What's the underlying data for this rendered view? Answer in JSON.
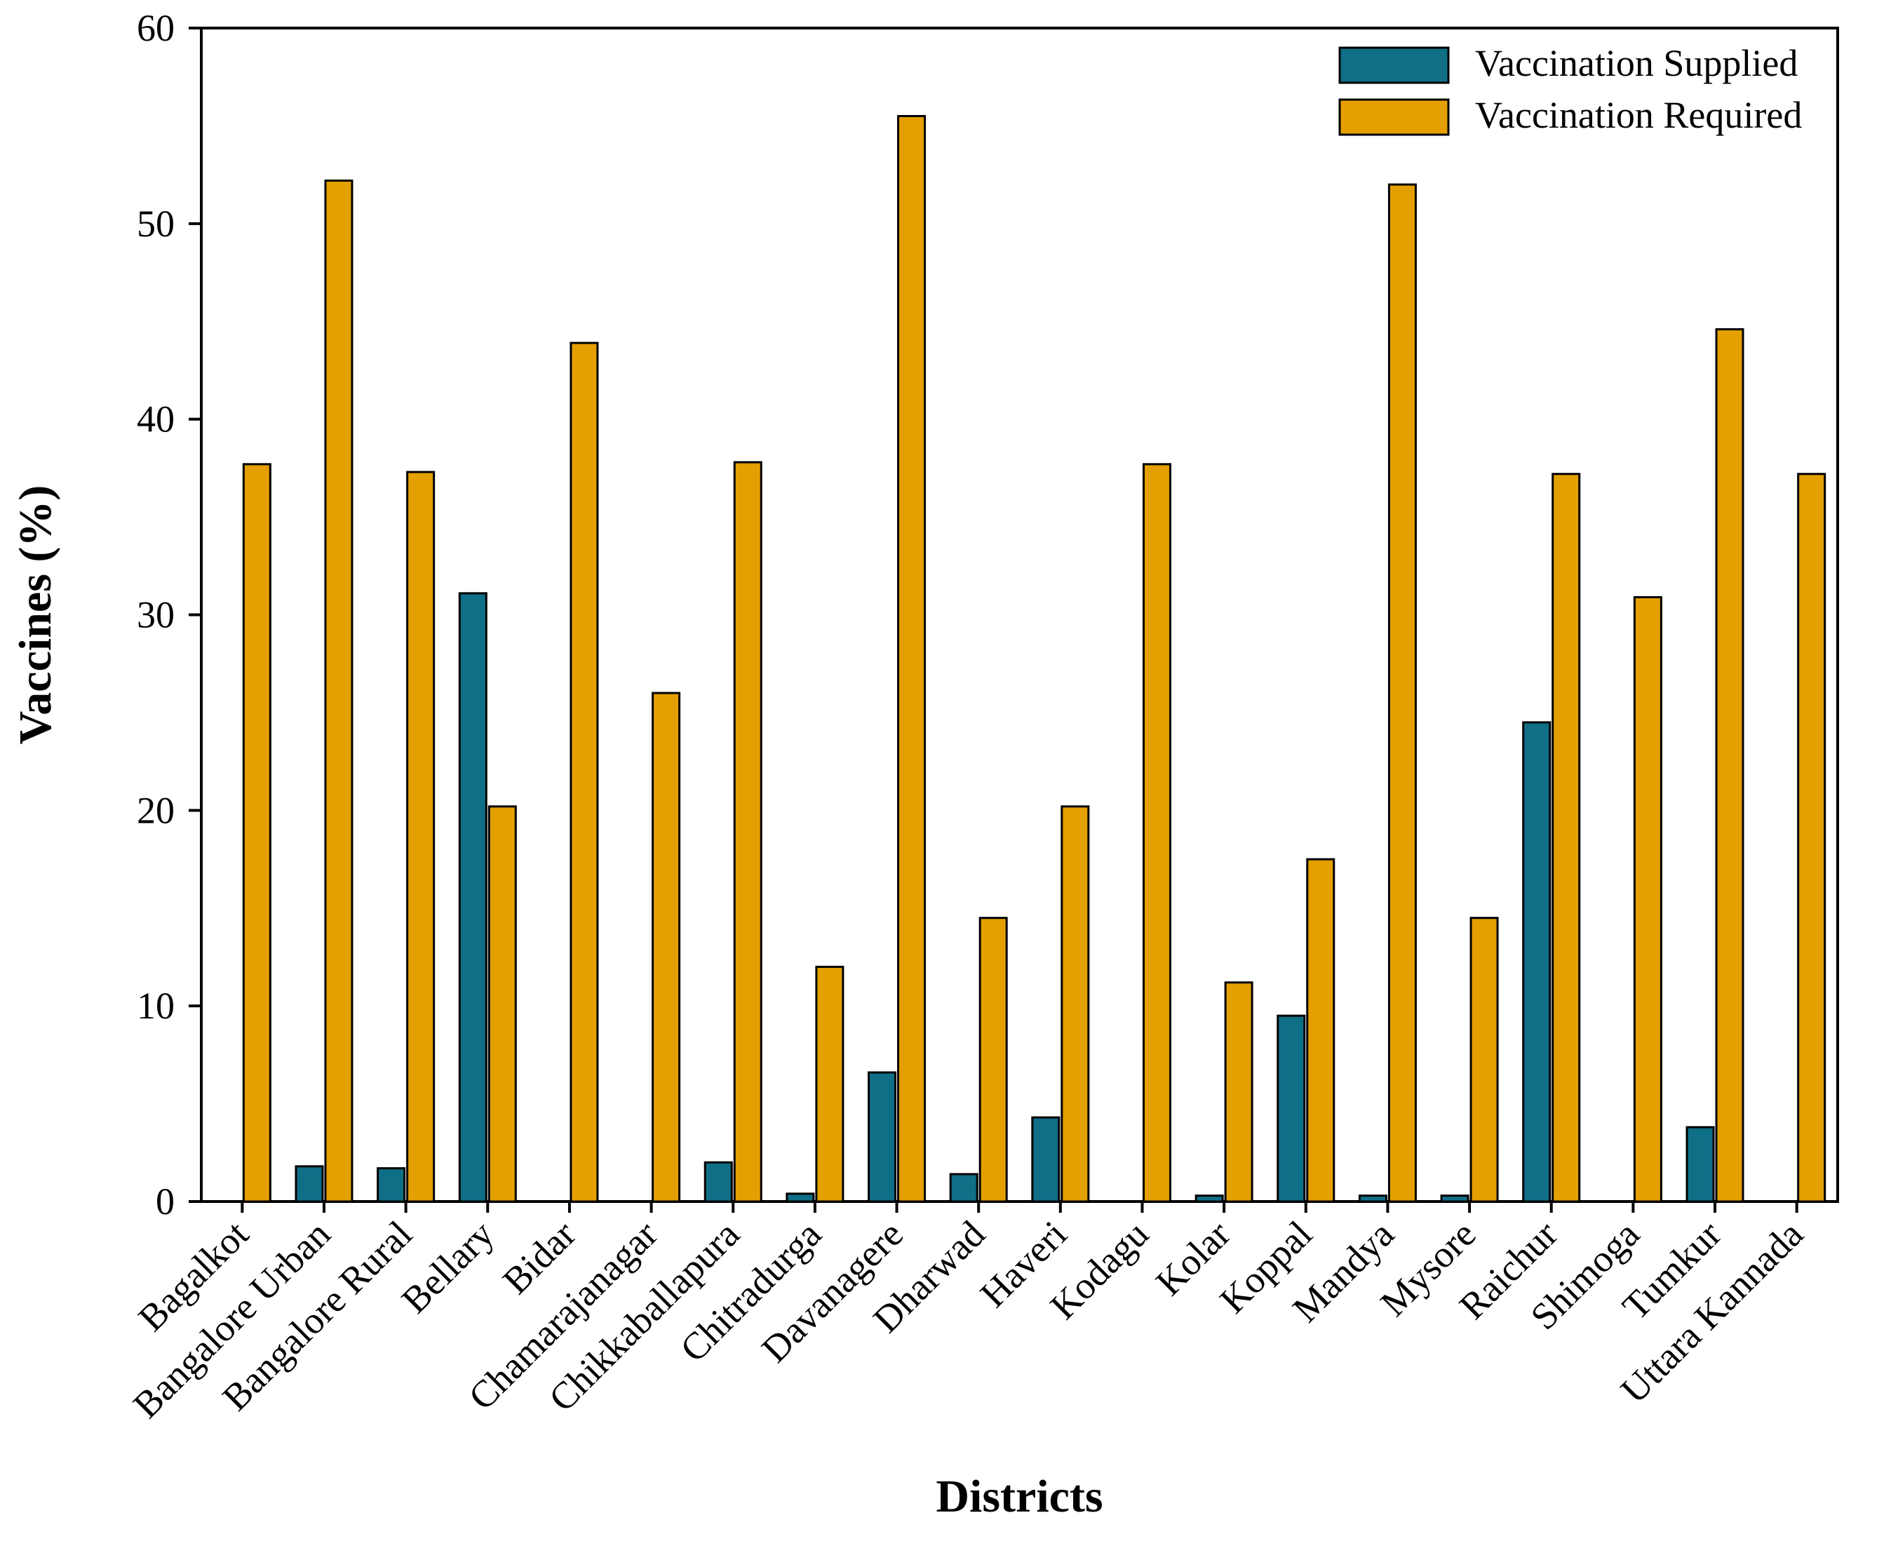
{
  "chart_data": {
    "type": "bar",
    "title": "",
    "xlabel": "Districts",
    "ylabel": "Vaccines (%)",
    "ylim": [
      0,
      60
    ],
    "yticks": [
      0,
      10,
      20,
      30,
      40,
      50,
      60
    ],
    "grid": false,
    "legend_position": "top-right",
    "categories": [
      "Bagalkot",
      "Bangalore Urban",
      "Bangalore Rural",
      "Bellary",
      "Bidar",
      "Chamarajanagar",
      "Chikkaballapura",
      "Chitradurga",
      "Davanagere",
      "Dharwad",
      "Haveri",
      "Kodagu",
      "Kolar",
      "Koppal",
      "Mandya",
      "Mysore",
      "Raichur",
      "Shimoga",
      "Tumkur",
      "Uttara Kannada"
    ],
    "series": [
      {
        "name": "Vaccination Supplied",
        "color": "#0f6f87",
        "values": [
          0,
          1.8,
          1.7,
          31.1,
          0,
          0,
          2.0,
          0.4,
          6.6,
          1.4,
          4.3,
          0,
          0.3,
          9.5,
          0.3,
          0.3,
          24.5,
          0,
          3.8,
          0
        ]
      },
      {
        "name": "Vaccination Required",
        "color": "#e4a000",
        "values": [
          37.7,
          52.2,
          37.3,
          20.2,
          43.9,
          26.0,
          37.8,
          12.0,
          55.5,
          14.5,
          20.2,
          37.7,
          11.2,
          17.5,
          52.0,
          14.5,
          37.2,
          30.9,
          44.6,
          37.2
        ]
      }
    ]
  }
}
